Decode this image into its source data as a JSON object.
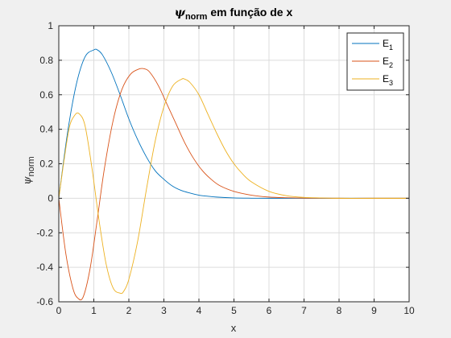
{
  "chart_data": {
    "type": "line",
    "title": {
      "psi": "ψ",
      "sub": "norm",
      "rest": " em função de x"
    },
    "xlabel": "x",
    "ylabel": {
      "psi": "ψ",
      "sub": "norm"
    },
    "xlim": [
      0,
      10
    ],
    "ylim": [
      -0.6,
      1
    ],
    "xticks": [
      "0",
      "1",
      "2",
      "3",
      "4",
      "5",
      "6",
      "7",
      "8",
      "9",
      "10"
    ],
    "yticks": [
      "-0.6",
      "-0.4",
      "-0.2",
      "0",
      "0.2",
      "0.4",
      "0.6",
      "0.8",
      "1"
    ],
    "grid": true,
    "legend_location": "top-right",
    "series": [
      {
        "name": "E",
        "sub": "1",
        "color": "#0072BD",
        "x": [
          0,
          0.25,
          0.5,
          0.75,
          1.0,
          1.1,
          1.25,
          1.5,
          1.75,
          2.0,
          2.25,
          2.5,
          2.75,
          3.0,
          3.25,
          3.5,
          3.75,
          4.0,
          4.25,
          4.5,
          5.0,
          5.5,
          6.0,
          7.0,
          8.0,
          9.0,
          10.0
        ],
        "y": [
          0,
          0.38,
          0.66,
          0.82,
          0.86,
          0.86,
          0.83,
          0.73,
          0.6,
          0.46,
          0.34,
          0.24,
          0.16,
          0.11,
          0.07,
          0.045,
          0.03,
          0.018,
          0.012,
          0.007,
          0.002,
          0.0005,
          0,
          0,
          0,
          0,
          0
        ]
      },
      {
        "name": "E",
        "sub": "2",
        "color": "#D95319",
        "x": [
          0,
          0.2,
          0.4,
          0.55,
          0.7,
          0.9,
          1.1,
          1.3,
          1.55,
          1.8,
          2.05,
          2.3,
          2.45,
          2.6,
          2.85,
          3.1,
          3.35,
          3.6,
          3.85,
          4.1,
          4.35,
          4.6,
          5.0,
          5.5,
          6.0,
          6.5,
          7.0,
          8.0,
          9.0,
          10.0
        ],
        "y": [
          0,
          -0.32,
          -0.52,
          -0.58,
          -0.57,
          -0.4,
          -0.12,
          0.17,
          0.45,
          0.63,
          0.72,
          0.75,
          0.75,
          0.73,
          0.65,
          0.54,
          0.43,
          0.32,
          0.23,
          0.16,
          0.11,
          0.073,
          0.04,
          0.018,
          0.007,
          0.003,
          0.001,
          0,
          0,
          0
        ]
      },
      {
        "name": "E",
        "sub": "3",
        "color": "#EDB120",
        "x": [
          0,
          0.15,
          0.3,
          0.45,
          0.58,
          0.75,
          0.95,
          1.15,
          1.35,
          1.55,
          1.75,
          1.85,
          2.0,
          2.25,
          2.5,
          2.75,
          3.0,
          3.25,
          3.5,
          3.6,
          3.75,
          4.0,
          4.25,
          4.5,
          4.75,
          5.0,
          5.25,
          5.5,
          6.0,
          6.5,
          7.0,
          7.5,
          8.0,
          9.0,
          10.0
        ],
        "y": [
          0,
          0.22,
          0.41,
          0.48,
          0.49,
          0.42,
          0.17,
          -0.13,
          -0.38,
          -0.52,
          -0.55,
          -0.54,
          -0.47,
          -0.25,
          0.05,
          0.33,
          0.53,
          0.65,
          0.69,
          0.69,
          0.67,
          0.6,
          0.49,
          0.38,
          0.28,
          0.2,
          0.14,
          0.095,
          0.04,
          0.015,
          0.005,
          0.002,
          0,
          0,
          0
        ]
      }
    ]
  }
}
